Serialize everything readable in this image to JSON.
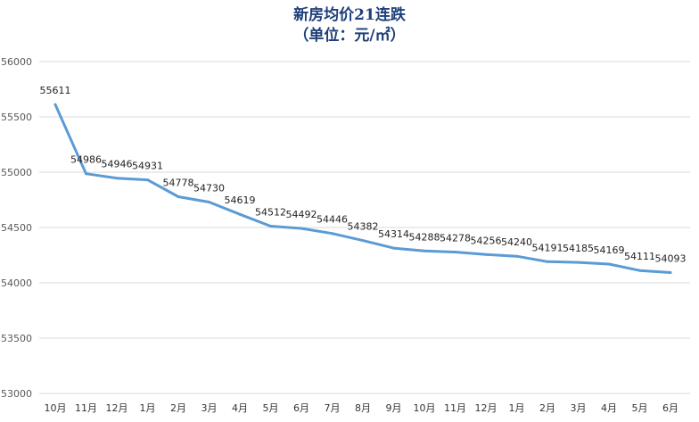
{
  "chart_data": {
    "type": "line",
    "title": "新房均价21连跌",
    "subtitle": "（单位：元/㎡）",
    "xlabel": "",
    "ylabel": "",
    "categories": [
      "10月",
      "11月",
      "12月",
      "1月",
      "2月",
      "3月",
      "4月",
      "5月",
      "6月",
      "7月",
      "8月",
      "9月",
      "10月",
      "11月",
      "12月",
      "1月",
      "2月",
      "3月",
      "4月",
      "5月",
      "6月"
    ],
    "series": [
      {
        "values": [
          55611,
          54986,
          54946,
          54931,
          54778,
          54730,
          54619,
          54512,
          54492,
          54446,
          54382,
          54314,
          54288,
          54278,
          54256,
          54240,
          54191,
          54185,
          54169,
          54111,
          54093
        ]
      }
    ],
    "ylim": [
      53000,
      56000
    ],
    "yticks": [
      53000,
      53500,
      54000,
      54500,
      55000,
      55500,
      56000
    ],
    "grid": true,
    "legend": "none",
    "data_labels": true,
    "colors": {
      "line": "#5b9bd5",
      "grid": "#d9d9d9",
      "title": "#1f3f7a"
    }
  }
}
